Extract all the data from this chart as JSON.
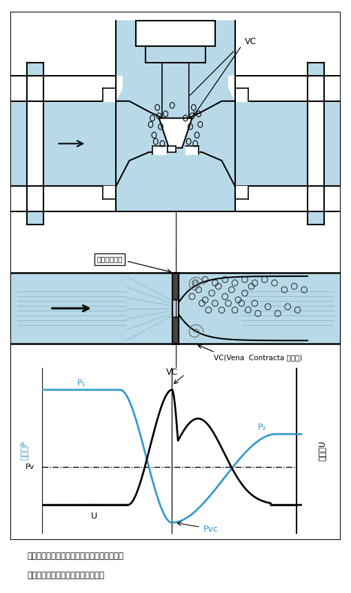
{
  "bg_color": "#ffffff",
  "light_blue": "#b8d9e8",
  "blue_line": "#3399cc",
  "black_line": "#000000",
  "caption_line1": "縮流部は流線上にある流体学的な絞り部で、",
  "caption_line2": "機械的絞り部の直後に存在します。",
  "label_kikai": "機械的絞り部",
  "label_VC_annot": "VC(Vena  Contracta 縮流部)",
  "label_VC": "VC",
  "label_P1": "P₁",
  "label_P2": "P₂",
  "label_Pv": "Pv",
  "label_Pvc": "Pvc",
  "label_U_curve": "U",
  "label_atsuryoku": "圧力　P",
  "label_ryuusoku": "流速　U",
  "valve_label_VC": "VC"
}
